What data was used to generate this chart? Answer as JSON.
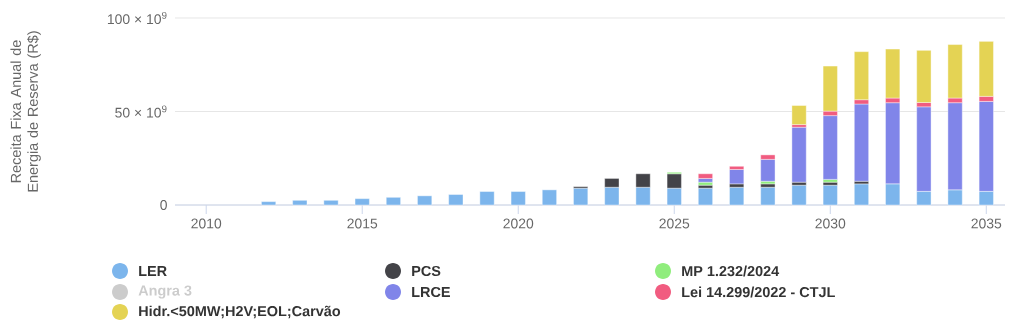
{
  "chart_data": {
    "type": "bar",
    "stacked": true,
    "ylabel": "Receita Fixa Anual de Energia de Reserva (R$)",
    "x": [
      2012,
      2013,
      2014,
      2015,
      2016,
      2017,
      2018,
      2019,
      2020,
      2021,
      2022,
      2023,
      2024,
      2025,
      2026,
      2027,
      2028,
      2029,
      2030,
      2031,
      2032,
      2033,
      2034,
      2035
    ],
    "series": [
      {
        "name": "LER",
        "color": "#7cb5ec",
        "values": [
          1800000000.0,
          2500000000.0,
          2500000000.0,
          3400000000.0,
          4100000000.0,
          4900000000.0,
          5600000000.0,
          7200000000.0,
          7200000000.0,
          8100000000.0,
          9000000000.0,
          9500000000.0,
          9500000000.0,
          9000000000.0,
          9000000000.0,
          9500000000.0,
          9500000000.0,
          10600000000.0,
          10600000000.0,
          11300000000.0,
          11300000000.0,
          7300000000.0,
          8100000000.0,
          7300000000.0
        ]
      },
      {
        "name": "PCS",
        "color": "#434348",
        "values": [
          null,
          null,
          null,
          null,
          null,
          null,
          null,
          null,
          null,
          null,
          800000000.0,
          4700000000.0,
          7200000000.0,
          7700000000.0,
          1600000000.0,
          1800000000.0,
          1800000000.0,
          1600000000.0,
          1600000000.0,
          1400000000.0,
          null,
          null,
          null,
          null
        ]
      },
      {
        "name": "MP 1.232/2024",
        "color": "#90ed7d",
        "values": [
          null,
          null,
          null,
          null,
          null,
          null,
          null,
          null,
          null,
          null,
          null,
          null,
          null,
          800000000.0,
          1600000000.0,
          null,
          1400000000.0,
          null,
          1500000000.0,
          null,
          null,
          null,
          null,
          null
        ]
      },
      {
        "name": "Angra 3",
        "color": "#cccccc",
        "values": [
          null,
          null,
          null,
          null,
          null,
          null,
          null,
          null,
          null,
          null,
          null,
          null,
          null,
          null,
          null,
          null,
          null,
          null,
          null,
          null,
          null,
          null,
          null,
          null
        ]
      },
      {
        "name": "LRCE",
        "color": "#8085e9",
        "values": [
          null,
          null,
          null,
          null,
          null,
          null,
          null,
          null,
          null,
          null,
          null,
          null,
          null,
          null,
          2000000000.0,
          7700000000.0,
          11700000000.0,
          29400000000.0,
          34100000000.0,
          41300000000.0,
          43400000000.0,
          45200000000.0,
          46600000000.0,
          48100000000.0
        ]
      },
      {
        "name": "Lei 14.299/2022 - CTJL",
        "color": "#f15c80",
        "values": [
          null,
          null,
          null,
          null,
          null,
          null,
          null,
          null,
          null,
          null,
          null,
          null,
          null,
          null,
          2500000000.0,
          1700000000.0,
          2400000000.0,
          1400000000.0,
          2400000000.0,
          2300000000.0,
          2500000000.0,
          2300000000.0,
          2500000000.0,
          2700000000.0
        ]
      },
      {
        "name": "Hidr.<50MW;H2V;EOL;Carvão",
        "color": "#e4d354",
        "values": [
          null,
          null,
          null,
          null,
          null,
          null,
          null,
          null,
          null,
          null,
          null,
          null,
          null,
          null,
          null,
          null,
          null,
          10200000000.0,
          24100000000.0,
          25700000000.0,
          26200000000.0,
          27900000000.0,
          28600000000.0,
          29400000000.0
        ]
      }
    ],
    "xlim": [
      2009,
      2035.6
    ],
    "xticks": [
      2010,
      2015,
      2020,
      2025,
      2030,
      2035
    ],
    "ylim": [
      0,
      100000000000.0
    ],
    "yticks": [
      {
        "value": 0,
        "label": "0"
      },
      {
        "value": 50000000000.0,
        "label": "50 × 10$^{9}$"
      },
      {
        "value": 100000000000.0,
        "label": "100 × 10$^{9}$"
      }
    ],
    "grid": "y",
    "legend": "bottom"
  }
}
